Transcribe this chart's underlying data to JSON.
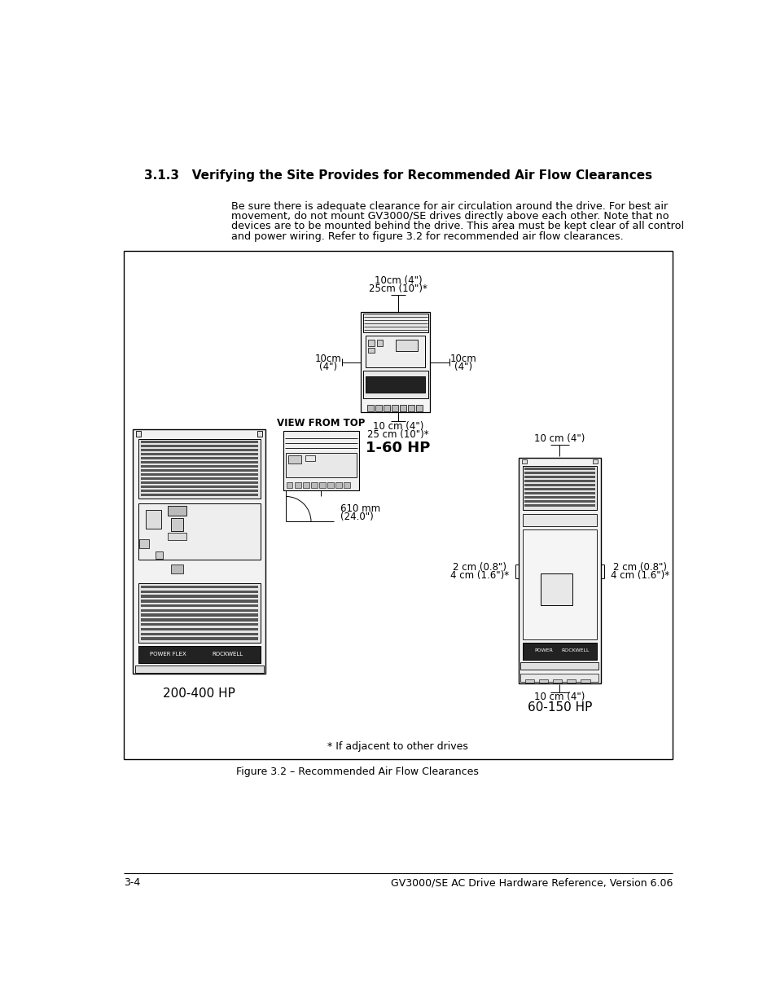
{
  "title": "3.1.3   Verifying the Site Provides for Recommended Air Flow Clearances",
  "body_line1": "Be sure there is adequate clearance for air circulation around the drive. For best air",
  "body_line2": "movement, do not mount GV3000/SE drives directly above each other. Note that no",
  "body_line3": "devices are to be mounted behind the drive. This area must be kept clear of all control",
  "body_line4": "and power wiring. Refer to figure 3.2 for recommended air flow clearances.",
  "figure_caption": "Figure 3.2 – Recommended Air Flow Clearances",
  "footer_left": "3-4",
  "footer_right": "GV3000/SE AC Drive Hardware Reference, Version 6.06",
  "label_1_60hp": "1-60 HP",
  "label_200_400hp": "200-400 HP",
  "label_60_150hp": "60-150 HP",
  "note_adjacent": "* If adjacent to other drives",
  "view_from_top": "VIEW FROM TOP",
  "top_label_a": "10cm (4\")",
  "top_label_b": "25cm (10\")*",
  "side_label_left_a": "10cm",
  "side_label_left_b": "(4\")",
  "side_label_right_a": "10cm",
  "side_label_right_b": "(4\")",
  "bottom_label_a": "10 cm (4\")",
  "bottom_label_b": "25 cm (10\")*",
  "clearance_top_150": "10 cm (4\")",
  "clearance_side_left_150a": "2 cm (0.8\")",
  "clearance_side_left_150b": "4 cm (1.6\")*",
  "clearance_side_right_150a": "2 cm (0.8\")",
  "clearance_side_right_150b": "4 cm (1.6\")*",
  "clearance_bottom_150": "10 cm (4\")",
  "dimension_610a": "610 mm",
  "dimension_610b": "(24.0\")",
  "bg_color": "#ffffff",
  "text_color": "#000000"
}
